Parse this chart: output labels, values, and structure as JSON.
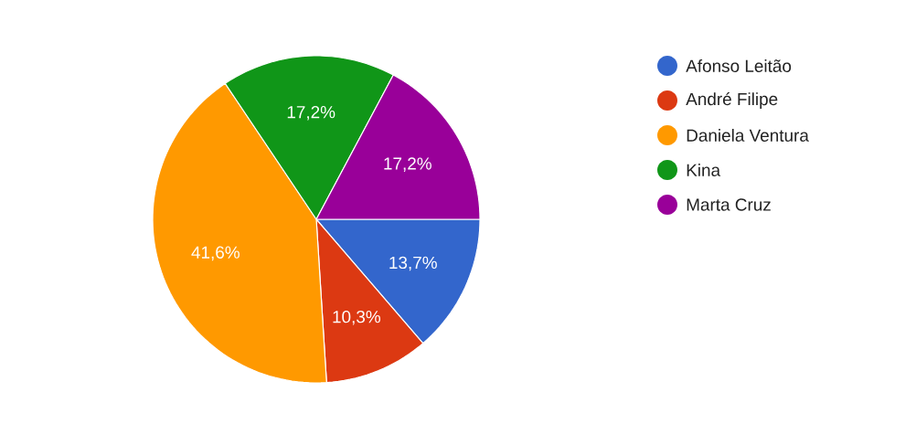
{
  "chart_data": {
    "type": "pie",
    "categories": [
      "Afonso Leitão",
      "André Filipe",
      "Daniela Ventura",
      "Kina",
      "Marta Cruz"
    ],
    "values": [
      13.7,
      10.3,
      41.6,
      17.2,
      17.2
    ],
    "colors": [
      "#3366cc",
      "#dc3912",
      "#ff9900",
      "#109618",
      "#990099"
    ],
    "value_labels": [
      "13,7%",
      "10,3%",
      "41,6%",
      "17,2%",
      "17,2%"
    ],
    "legend": "right"
  }
}
